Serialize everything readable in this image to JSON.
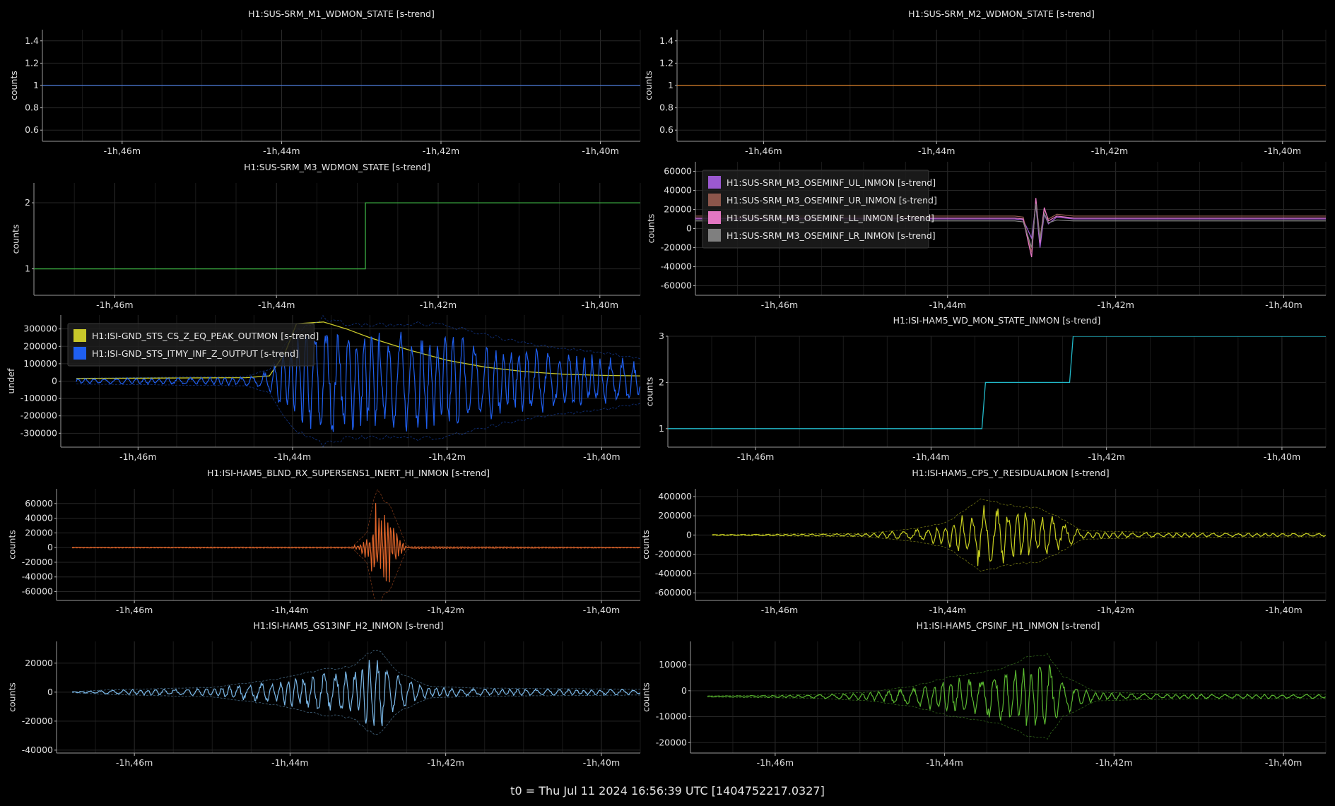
{
  "footer": "t0 = Thu Jul 11 2024 16:56:39 UTC [1404752217.0327]",
  "chart_data": [
    {
      "id": "m1",
      "type": "line",
      "title": "H1:SUS-SRM_M1_WDMON_STATE [s-trend]",
      "ylabel": "counts",
      "xlim": [
        -107,
        -99.5
      ],
      "ylim": [
        0.5,
        1.5
      ],
      "yticks": [
        0.6,
        0.8,
        1,
        1.2,
        1.4
      ],
      "yticklabels": [
        "0.6",
        "0.8",
        "1",
        "1.2",
        "1.4"
      ],
      "xticks": [
        -106,
        -104,
        -102,
        -100
      ],
      "xticklabels": [
        "-1h,46m",
        "-1h,44m",
        "-1h,42m",
        "-1h,40m"
      ],
      "series": [
        {
          "color": "#4f7fe0",
          "x": [
            -107,
            -99.5
          ],
          "y": [
            1,
            1
          ]
        }
      ]
    },
    {
      "id": "m2",
      "type": "line",
      "title": "H1:SUS-SRM_M2_WDMON_STATE [s-trend]",
      "ylabel": "counts",
      "xlim": [
        -107,
        -99.5
      ],
      "ylim": [
        0.5,
        1.5
      ],
      "yticks": [
        0.6,
        0.8,
        1,
        1.2,
        1.4
      ],
      "yticklabels": [
        "0.6",
        "0.8",
        "1",
        "1.2",
        "1.4"
      ],
      "xticks": [
        -106,
        -104,
        -102,
        -100
      ],
      "xticklabels": [
        "-1h,46m",
        "-1h,44m",
        "-1h,42m",
        "-1h,40m"
      ],
      "series": [
        {
          "color": "#e0852e",
          "x": [
            -107,
            -99.5
          ],
          "y": [
            1,
            1
          ]
        }
      ]
    },
    {
      "id": "m3",
      "type": "line",
      "title": "H1:SUS-SRM_M3_WDMON_STATE [s-trend]",
      "ylabel": "counts",
      "xlim": [
        -107,
        -99.5
      ],
      "ylim": [
        0.6,
        2.3
      ],
      "yticks": [
        1,
        2
      ],
      "yticklabels": [
        "1",
        "2"
      ],
      "xticks": [
        -106,
        -104,
        -102,
        -100
      ],
      "xticklabels": [
        "-1h,46m",
        "-1h,44m",
        "-1h,42m",
        "-1h,40m"
      ],
      "series": [
        {
          "color": "#3cb043",
          "x": [
            -107,
            -102.9,
            -102.9,
            -99.5
          ],
          "y": [
            1,
            1,
            2,
            2
          ]
        }
      ]
    },
    {
      "id": "osem",
      "type": "line",
      "title": "",
      "ylabel": "counts",
      "xlim": [
        -107,
        -99.5
      ],
      "ylim": [
        -70000,
        70000
      ],
      "yticks": [
        -60000,
        -40000,
        -20000,
        0,
        20000,
        40000,
        60000
      ],
      "yticklabels": [
        "-60000",
        "-40000",
        "-20000",
        "0",
        "20000",
        "40000",
        "60000"
      ],
      "xticks": [
        -106,
        -104,
        -102,
        -100
      ],
      "xticklabels": [
        "-1h,46m",
        "-1h,44m",
        "-1h,42m",
        "-1h,40m"
      ],
      "legend": {
        "position": "top-left",
        "entries": [
          {
            "label": "H1:SUS-SRM_M3_OSEMINF_UL_INMON [s-trend]",
            "color": "#9b59d0"
          },
          {
            "label": "H1:SUS-SRM_M3_OSEMINF_UR_INMON [s-trend]",
            "color": "#8c564b"
          },
          {
            "label": "H1:SUS-SRM_M3_OSEMINF_LL_INMON [s-trend]",
            "color": "#e377c2"
          },
          {
            "label": "H1:SUS-SRM_M3_OSEMINF_LR_INMON [s-trend]",
            "color": "#7f7f7f"
          }
        ]
      },
      "series": [
        {
          "color": "#9b59d0",
          "x": [
            -107,
            -103.2,
            -103.1,
            -103.0,
            -102.95,
            -102.9,
            -102.85,
            -102.8,
            -102.7,
            -102.5,
            -99.5
          ],
          "y": [
            10000,
            10000,
            9000,
            -10000,
            25000,
            -20000,
            15000,
            5000,
            12000,
            10000,
            10000
          ]
        },
        {
          "color": "#8c564b",
          "x": [
            -107,
            -103.2,
            -103.1,
            -103.0,
            -102.95,
            -102.9,
            -102.85,
            -102.8,
            -102.7,
            -102.5,
            -99.5
          ],
          "y": [
            13000,
            13000,
            12000,
            -25000,
            30000,
            -10000,
            20000,
            10000,
            15000,
            13000,
            13000
          ]
        },
        {
          "color": "#e377c2",
          "x": [
            -107,
            -103.2,
            -103.1,
            -103.0,
            -102.95,
            -102.9,
            -102.85,
            -102.8,
            -102.7,
            -102.5,
            -99.5
          ],
          "y": [
            11000,
            11000,
            10000,
            -30000,
            32000,
            -15000,
            22000,
            8000,
            13000,
            11000,
            11000
          ]
        },
        {
          "color": "#7f7f7f",
          "x": [
            -107,
            -103.2,
            -103.1,
            -103.0,
            -102.95,
            -102.9,
            -102.85,
            -102.8,
            -102.7,
            -102.5,
            -99.5
          ],
          "y": [
            8000,
            8000,
            7000,
            -20000,
            26000,
            -12000,
            16000,
            6000,
            9000,
            8000,
            8000
          ]
        }
      ]
    },
    {
      "id": "gnd",
      "type": "line",
      "title": "",
      "ylabel": "undef",
      "xlim": [
        -107,
        -99.5
      ],
      "ylim": [
        -380000,
        380000
      ],
      "yticks": [
        -300000,
        -200000,
        -100000,
        0,
        100000,
        200000,
        300000
      ],
      "yticklabels": [
        "-300000",
        "-200000",
        "-100000",
        "0",
        "100000",
        "200000",
        "300000"
      ],
      "xticks": [
        -106,
        -104,
        -102,
        -100
      ],
      "xticklabels": [
        "-1h,46m",
        "-1h,44m",
        "-1h,42m",
        "-1h,40m"
      ],
      "legend": {
        "position": "top-left",
        "entries": [
          {
            "label": "H1:ISI-GND_STS_CS_Z_EQ_PEAK_OUTMON [s-trend]",
            "color": "#c8c82a"
          },
          {
            "label": "H1:ISI-GND_STS_ITMY_INF_Z_OUTPUT [s-trend]",
            "color": "#1f5ff0"
          }
        ]
      },
      "series": [
        {
          "color": "#c8c82a",
          "x": [
            -106.8,
            -104.6,
            -104.3,
            -104.1,
            -103.95,
            -103.6,
            -103.3,
            -103.0,
            -102.5,
            -102.0,
            -101.5,
            -101.0,
            -100.5,
            -100.0,
            -99.5
          ],
          "y": [
            15000,
            20000,
            30000,
            160000,
            330000,
            340000,
            300000,
            250000,
            180000,
            120000,
            80000,
            55000,
            40000,
            33000,
            30000
          ]
        },
        {
          "color": "#1f5ff0",
          "generator": "osc",
          "x0": -106.8,
          "x1": -99.5,
          "x": [
            -106.8,
            -104.6,
            -104.3,
            -104.0,
            -103.6,
            -103.3,
            -103.0,
            -102.5,
            -102.0,
            -101.5,
            -101.0,
            -100.5,
            -100.0,
            -99.5
          ],
          "y": [
            15000,
            25000,
            60000,
            250000,
            330000,
            300000,
            290000,
            300000,
            290000,
            240000,
            200000,
            170000,
            150000,
            120000
          ]
        }
      ]
    },
    {
      "id": "wd",
      "type": "line",
      "title": "H1:ISI-HAM5_WD_MON_STATE_INMON [s-trend]",
      "ylabel": "counts",
      "xlim": [
        -107,
        -99.5
      ],
      "ylim": [
        0.6,
        3.0
      ],
      "yticks": [
        1,
        2,
        3
      ],
      "yticklabels": [
        "1",
        "2",
        "3"
      ],
      "xticks": [
        -106,
        -104,
        -102,
        -100
      ],
      "xticklabels": [
        "-1h,46m",
        "-1h,44m",
        "-1h,42m",
        "-1h,40m"
      ],
      "series": [
        {
          "color": "#22b8c8",
          "x": [
            -107,
            -103.42,
            -103.38,
            -102.42,
            -102.38,
            -99.5
          ],
          "y": [
            1,
            1,
            2,
            2,
            3,
            3
          ]
        }
      ]
    },
    {
      "id": "blnd",
      "type": "line",
      "title": "H1:ISI-HAM5_BLND_RX_SUPERSENS1_INERT_HI_INMON [s-trend]",
      "ylabel": "counts",
      "xlim": [
        -107,
        -99.5
      ],
      "ylim": [
        -72000,
        80000
      ],
      "yticks": [
        -60000,
        -40000,
        -20000,
        0,
        20000,
        40000,
        60000
      ],
      "yticklabels": [
        "-60000",
        "-40000",
        "-20000",
        "0",
        "20000",
        "40000",
        "60000"
      ],
      "xticks": [
        -106,
        -104,
        -102,
        -100
      ],
      "xticklabels": [
        "-1h,46m",
        "-1h,44m",
        "-1h,42m",
        "-1h,40m"
      ],
      "series": [
        {
          "color": "#e0652a",
          "generator": "burst",
          "x0": -106.8,
          "x1": -99.5,
          "x": [
            -106.8,
            -103.2,
            -103.0,
            -102.9,
            -102.8,
            -102.7,
            -102.5,
            -99.5
          ],
          "y": [
            600,
            800,
            20000,
            75000,
            60000,
            50000,
            1200,
            600
          ]
        }
      ]
    },
    {
      "id": "cpsy",
      "type": "line",
      "title": "H1:ISI-HAM5_CPS_Y_RESIDUALMON [s-trend]",
      "ylabel": "counts",
      "xlim": [
        -107,
        -99.5
      ],
      "ylim": [
        -680000,
        480000
      ],
      "yticks": [
        -600000,
        -400000,
        -200000,
        0,
        200000,
        400000
      ],
      "yticklabels": [
        "-600000",
        "-400000",
        "-200000",
        "0",
        "200000",
        "400000"
      ],
      "xticks": [
        -106,
        -104,
        -102,
        -100
      ],
      "xticklabels": [
        "-1h,46m",
        "-1h,44m",
        "-1h,42m",
        "-1h,40m"
      ],
      "series": [
        {
          "color": "#c8d020",
          "generator": "osc",
          "x0": -106.8,
          "x1": -99.5,
          "x": [
            -106.8,
            -105,
            -104.4,
            -104.0,
            -103.6,
            -103.2,
            -102.9,
            -102.7,
            -102.4,
            -101.5,
            -100,
            -99.5
          ],
          "y": [
            5000,
            15000,
            60000,
            120000,
            350000,
            270000,
            250000,
            180000,
            40000,
            25000,
            18000,
            18000
          ]
        }
      ]
    },
    {
      "id": "gs13",
      "type": "line",
      "title": "H1:ISI-HAM5_GS13INF_H2_INMON [s-trend]",
      "ylabel": "counts",
      "xlim": [
        -107,
        -99.5
      ],
      "ylim": [
        -42000,
        35000
      ],
      "yticks": [
        -40000,
        -20000,
        0,
        20000
      ],
      "yticklabels": [
        "-40000",
        "-20000",
        "0",
        "20000"
      ],
      "xticks": [
        -106,
        -104,
        -102,
        -100
      ],
      "xticklabels": [
        "-1h,46m",
        "-1h,44m",
        "-1h,42m",
        "-1h,40m"
      ],
      "series": [
        {
          "color": "#7ab8e8",
          "generator": "osc",
          "x0": -106.8,
          "x1": -99.5,
          "x": [
            -106.8,
            -106.3,
            -105,
            -104.2,
            -103.6,
            -103.2,
            -102.9,
            -102.6,
            -102.2,
            -101.5,
            -100,
            -99.5
          ],
          "y": [
            300,
            1500,
            3000,
            8000,
            14000,
            16000,
            28000,
            12000,
            3500,
            2500,
            2000,
            1800
          ]
        }
      ]
    },
    {
      "id": "cpsh1",
      "type": "line",
      "title": "H1:ISI-HAM5_CPSINF_H1_INMON [s-trend]",
      "ylabel": "counts",
      "xlim": [
        -107,
        -99.5
      ],
      "ylim": [
        -24000,
        19000
      ],
      "yticks": [
        -20000,
        -10000,
        0,
        10000
      ],
      "yticklabels": [
        "-20000",
        "-10000",
        "0",
        "10000"
      ],
      "xticks": [
        -106,
        -104,
        -102,
        -100
      ],
      "xticklabels": [
        "-1h,46m",
        "-1h,44m",
        "-1h,42m",
        "-1h,40m"
      ],
      "series": [
        {
          "color": "#5ab830",
          "generator": "osc",
          "offset": -2200,
          "x0": -106.8,
          "x1": -99.5,
          "x": [
            -106.8,
            -105.6,
            -104.9,
            -104.4,
            -103.9,
            -103.4,
            -103.0,
            -102.8,
            -102.6,
            -102.2,
            -101.5,
            -100,
            -99.5
          ],
          "y": [
            200,
            600,
            1500,
            3500,
            7000,
            9000,
            14000,
            15000,
            7000,
            1500,
            1000,
            800,
            800
          ]
        }
      ]
    }
  ]
}
